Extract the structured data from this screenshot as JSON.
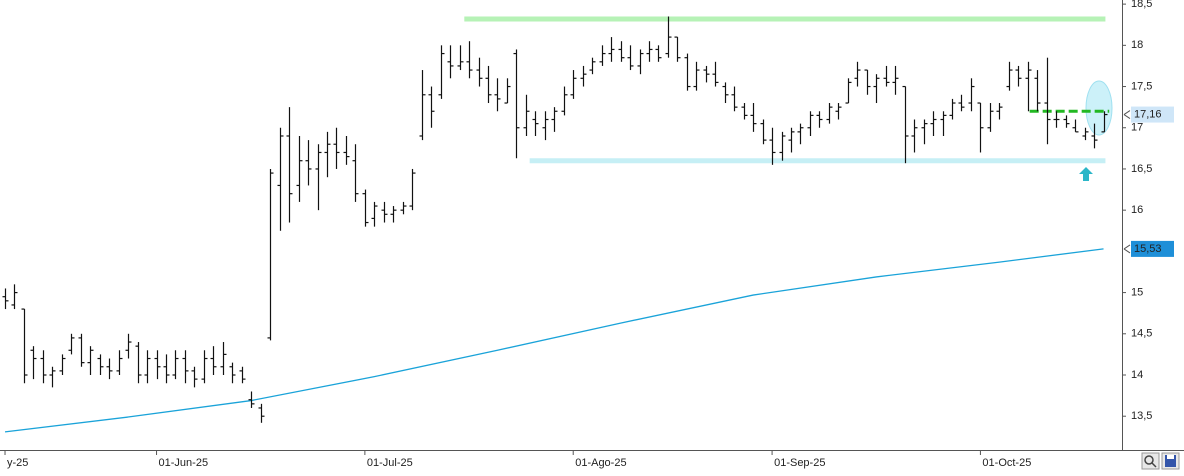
{
  "chart_data": {
    "type": "ohlc",
    "categories": [
      "y-25",
      null,
      null,
      null,
      null,
      null,
      null,
      null,
      null,
      null,
      null,
      null,
      null,
      null,
      null,
      null,
      "01-Jun-25",
      null,
      null,
      null,
      null,
      null,
      null,
      null,
      null,
      null,
      null,
      null,
      null,
      null,
      null,
      null,
      null,
      null,
      null,
      null,
      null,
      null,
      "01-Jul-25",
      null,
      null,
      null,
      null,
      null,
      null,
      null,
      null,
      null,
      null,
      null,
      null,
      null,
      null,
      null,
      null,
      null,
      null,
      null,
      null,
      null,
      "01-Ago-25",
      null,
      null,
      null,
      null,
      null,
      null,
      null,
      null,
      null,
      null,
      null,
      null,
      null,
      null,
      null,
      null,
      null,
      null,
      null,
      null,
      "01-Sep-25",
      null,
      null,
      null,
      null,
      null,
      null,
      null,
      null,
      null,
      null,
      null,
      null,
      null,
      null,
      null,
      null,
      null,
      null,
      null,
      null,
      null,
      "01-Oct-25",
      null,
      null,
      null,
      null,
      null,
      null,
      null,
      null,
      null,
      null,
      null,
      null,
      null
    ],
    "open": [
      14.95,
      14.85,
      14.8,
      14.3,
      14.2,
      14.0,
      14.05,
      14.3,
      14.45,
      14.15,
      14.2,
      14.1,
      14.05,
      14.3,
      14.35,
      14.0,
      14.2,
      14.1,
      14.0,
      14.2,
      14.05,
      13.95,
      14.2,
      14.1,
      14.1,
      14.05,
      13.7,
      13.6,
      14.45,
      16.3,
      16.9,
      16.3,
      16.6,
      16.5,
      16.7,
      16.8,
      16.7,
      16.6,
      16.2,
      15.9,
      16.0,
      15.95,
      16.0,
      16.05,
      16.9,
      17.4,
      17.4,
      17.8,
      17.75,
      17.8,
      17.7,
      17.6,
      17.4,
      17.3,
      17.9,
      17.0,
      17.1,
      17.0,
      17.1,
      17.2,
      17.4,
      17.6,
      17.7,
      17.8,
      17.9,
      17.95,
      17.85,
      17.75,
      17.9,
      17.95,
      17.9,
      18.1,
      17.85,
      17.5,
      17.7,
      17.65,
      17.5,
      17.4,
      17.25,
      17.15,
      17.05,
      16.85,
      16.7,
      16.85,
      16.95,
      17.0,
      17.15,
      17.1,
      17.2,
      17.3,
      17.6,
      17.7,
      17.5,
      17.6,
      17.55,
      17.5,
      16.9,
      17.0,
      17.05,
      17.1,
      17.15,
      17.3,
      17.3,
      17.3,
      17.0,
      17.2,
      17.5,
      17.7,
      17.6,
      17.6,
      17.3,
      17.1,
      17.1,
      17.0,
      16.9,
      16.9,
      16.95
    ],
    "high": [
      15.05,
      15.1,
      14.8,
      14.35,
      14.3,
      14.1,
      14.25,
      14.5,
      14.5,
      14.35,
      14.25,
      14.2,
      14.3,
      14.5,
      14.4,
      14.3,
      14.3,
      14.25,
      14.3,
      14.3,
      14.1,
      14.3,
      14.35,
      14.4,
      14.15,
      14.1,
      13.8,
      13.65,
      16.5,
      17.0,
      17.25,
      16.9,
      16.85,
      16.8,
      16.95,
      17.0,
      16.9,
      16.8,
      16.25,
      16.1,
      16.1,
      16.05,
      16.1,
      16.5,
      17.7,
      17.5,
      18.0,
      18.0,
      18.0,
      18.05,
      17.85,
      17.75,
      17.6,
      17.6,
      17.95,
      17.4,
      17.2,
      17.2,
      17.25,
      17.5,
      17.7,
      17.75,
      17.85,
      18.0,
      18.1,
      18.05,
      18.0,
      17.95,
      18.05,
      18.0,
      18.35,
      18.1,
      17.9,
      17.8,
      17.75,
      17.8,
      17.55,
      17.5,
      17.3,
      17.3,
      17.1,
      17.0,
      16.95,
      17.0,
      17.05,
      17.2,
      17.2,
      17.3,
      17.3,
      17.6,
      17.8,
      17.7,
      17.65,
      17.75,
      17.75,
      17.5,
      17.1,
      17.1,
      17.2,
      17.2,
      17.35,
      17.4,
      17.6,
      17.3,
      17.3,
      17.3,
      17.8,
      17.75,
      17.8,
      17.7,
      17.85,
      17.2,
      17.15,
      17.1,
      17.0,
      17.05,
      17.2
    ],
    "low": [
      14.8,
      14.8,
      13.9,
      13.95,
      13.9,
      13.85,
      14.0,
      14.25,
      14.1,
      14.0,
      14.0,
      13.95,
      14.0,
      14.2,
      13.9,
      13.9,
      13.95,
      13.9,
      13.95,
      13.9,
      13.85,
      13.9,
      14.0,
      14.0,
      13.9,
      13.9,
      13.6,
      13.42,
      14.42,
      15.75,
      15.85,
      16.1,
      16.3,
      16.0,
      16.4,
      16.5,
      16.55,
      16.1,
      15.8,
      15.8,
      15.85,
      15.85,
      15.95,
      16.0,
      16.85,
      17.0,
      17.35,
      17.6,
      17.7,
      17.6,
      17.5,
      17.3,
      17.2,
      17.3,
      16.63,
      16.9,
      16.9,
      16.85,
      16.95,
      17.15,
      17.35,
      17.5,
      17.65,
      17.75,
      17.8,
      17.8,
      17.7,
      17.65,
      17.8,
      17.8,
      17.85,
      17.8,
      17.45,
      17.45,
      17.55,
      17.5,
      17.3,
      17.2,
      17.1,
      16.95,
      16.8,
      16.55,
      16.6,
      16.7,
      16.8,
      16.9,
      17.0,
      17.05,
      17.1,
      17.3,
      17.5,
      17.4,
      17.3,
      17.5,
      17.4,
      16.57,
      16.7,
      16.8,
      16.9,
      16.9,
      17.1,
      17.2,
      17.2,
      16.7,
      16.95,
      17.1,
      17.45,
      17.5,
      17.2,
      17.2,
      16.8,
      17.0,
      17.0,
      16.95,
      16.85,
      16.75,
      16.95
    ],
    "close": [
      14.9,
      15.0,
      14.0,
      14.2,
      14.0,
      14.05,
      14.2,
      14.45,
      14.15,
      14.3,
      14.1,
      14.05,
      14.2,
      14.4,
      14.0,
      14.2,
      14.1,
      14.0,
      14.2,
      14.05,
      13.95,
      14.2,
      14.1,
      14.25,
      14.0,
      13.95,
      13.65,
      13.5,
      16.45,
      16.9,
      16.2,
      16.6,
      16.5,
      16.7,
      16.8,
      16.7,
      16.65,
      16.2,
      15.85,
      16.05,
      15.95,
      16.0,
      16.05,
      16.45,
      17.4,
      17.2,
      17.9,
      17.75,
      17.8,
      17.7,
      17.6,
      17.4,
      17.35,
      17.5,
      17.0,
      17.2,
      17.05,
      17.1,
      17.2,
      17.4,
      17.6,
      17.65,
      17.8,
      17.9,
      17.95,
      17.85,
      17.75,
      17.9,
      17.95,
      17.85,
      18.1,
      17.85,
      17.5,
      17.7,
      17.65,
      17.55,
      17.4,
      17.25,
      17.15,
      17.05,
      16.85,
      16.7,
      16.9,
      16.95,
      17.0,
      17.15,
      17.1,
      17.25,
      17.25,
      17.55,
      17.7,
      17.5,
      17.6,
      17.55,
      17.6,
      16.9,
      17.0,
      17.05,
      17.1,
      17.15,
      17.3,
      17.25,
      17.5,
      17.0,
      17.2,
      17.25,
      17.7,
      17.6,
      17.7,
      17.3,
      17.1,
      17.1,
      17.05,
      16.95,
      16.95,
      16.85,
      17.16
    ],
    "bar_color": "#111111",
    "moving_average": {
      "color": "#1aa3d9",
      "x": [
        0,
        13,
        26,
        39,
        52,
        65,
        79,
        92,
        105,
        116
      ],
      "values": [
        13.31,
        13.49,
        13.69,
        13.98,
        14.3,
        14.63,
        14.97,
        15.19,
        15.37,
        15.53
      ]
    },
    "levels": [
      {
        "value": 18.32,
        "x": [
          48.5,
          116.2
        ],
        "color": "#b6f2b6",
        "dashed": false
      },
      {
        "value": 16.6,
        "x": [
          55.4,
          116.2
        ],
        "color": "#c6eff5",
        "dashed": false
      },
      {
        "value": 17.2,
        "x": [
          108.2,
          116.6
        ],
        "color": "#22b822",
        "dashed": true
      }
    ],
    "price_labels": [
      {
        "value": 17.16,
        "label": "17,16",
        "fill": "#cfe6f8",
        "text_color": "#1f5fa8"
      },
      {
        "value": 15.53,
        "label": "15,53",
        "fill": "#1e8fd8",
        "text_color": "#ffffff"
      }
    ],
    "xlim": [
      -0.53,
      117.95
    ],
    "ylim": [
      13.09,
      18.55
    ],
    "yticks": [
      {
        "value": 18.5,
        "label": "18,5"
      },
      18,
      {
        "value": 17.5,
        "label": "17,5"
      },
      17,
      {
        "value": 16.5,
        "label": "16,5"
      },
      16,
      15,
      {
        "value": 14.5,
        "label": "14,5"
      },
      14,
      {
        "value": 13.5,
        "label": "13,5"
      }
    ]
  }
}
